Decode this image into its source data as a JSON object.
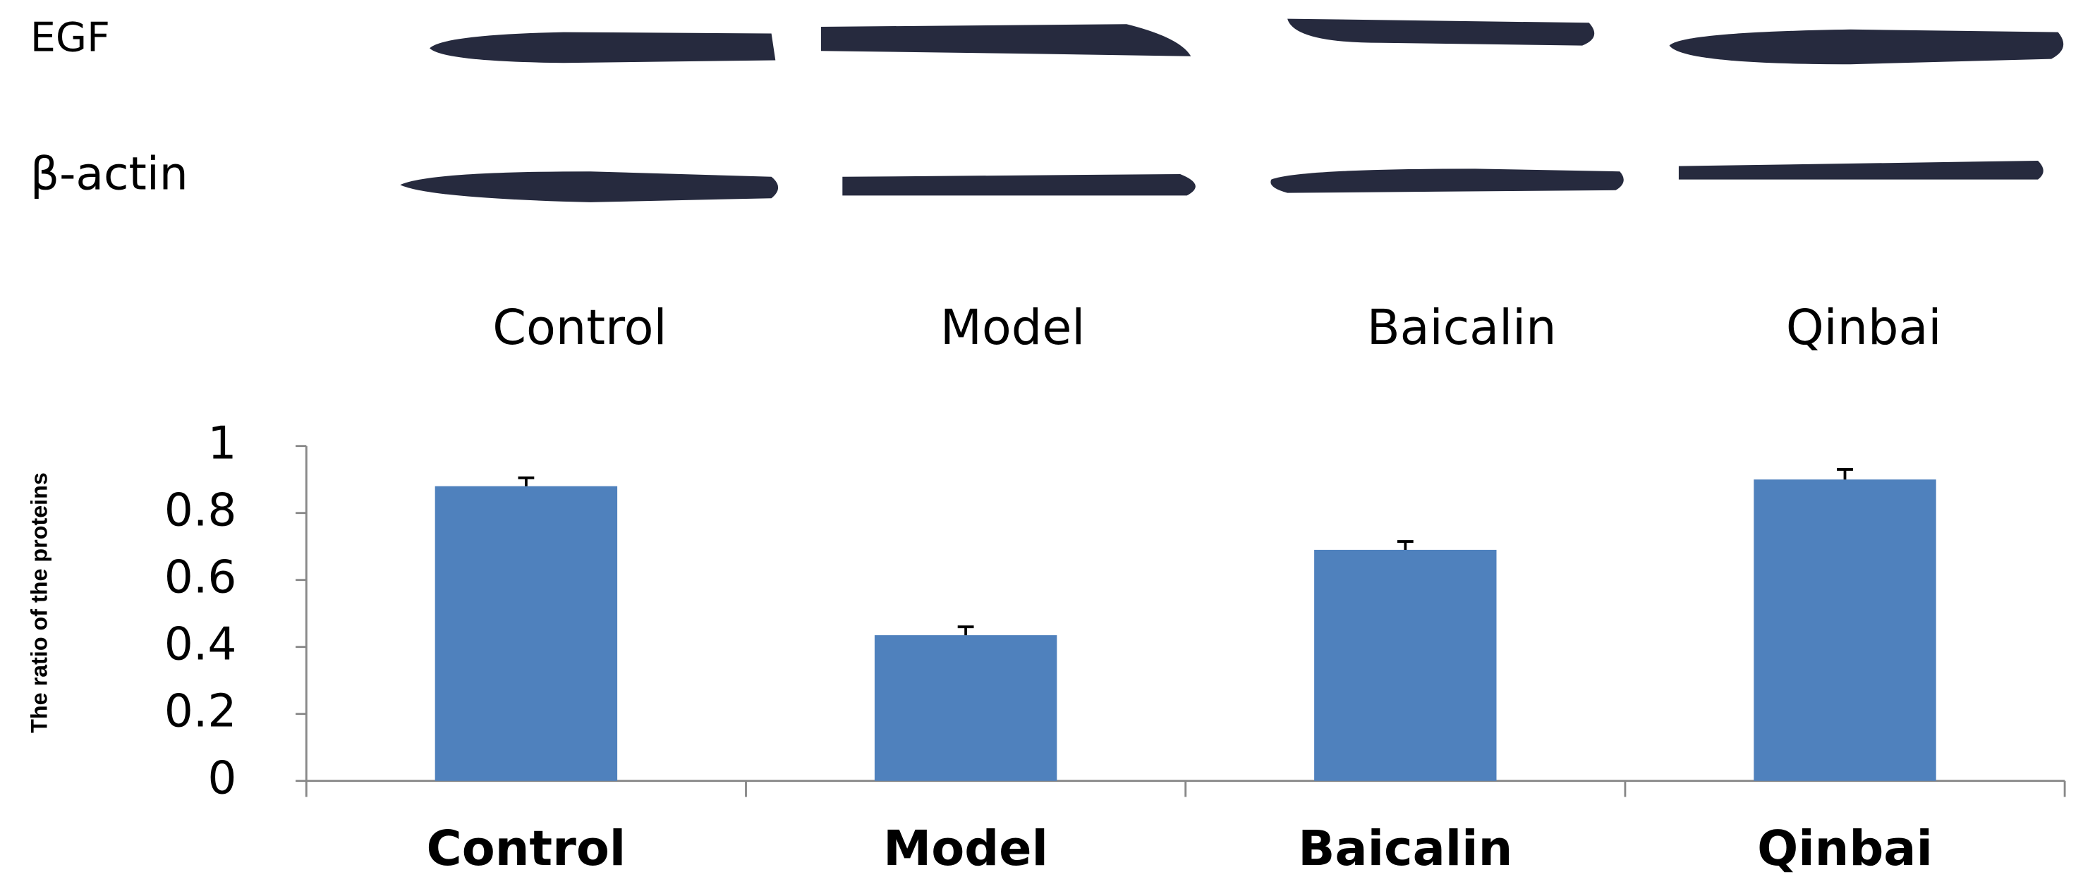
{
  "blot": {
    "rows": [
      "EGF",
      "β-actin"
    ],
    "lanes": [
      "Control",
      "Model",
      "Baicalin",
      "Qinbai"
    ]
  },
  "chart_data": {
    "type": "bar",
    "y_label": "The ratio of the proteins",
    "categories": [
      "Control",
      "Model",
      "Baicalin",
      "Qinbai"
    ],
    "values": [
      0.88,
      0.435,
      0.69,
      0.9
    ],
    "errors": [
      0.025,
      0.025,
      0.025,
      0.03
    ],
    "color": "#4f81bd",
    "ylim": [
      0,
      1
    ],
    "yticks": [
      0,
      0.2,
      0.4,
      0.6,
      0.8,
      1
    ]
  }
}
